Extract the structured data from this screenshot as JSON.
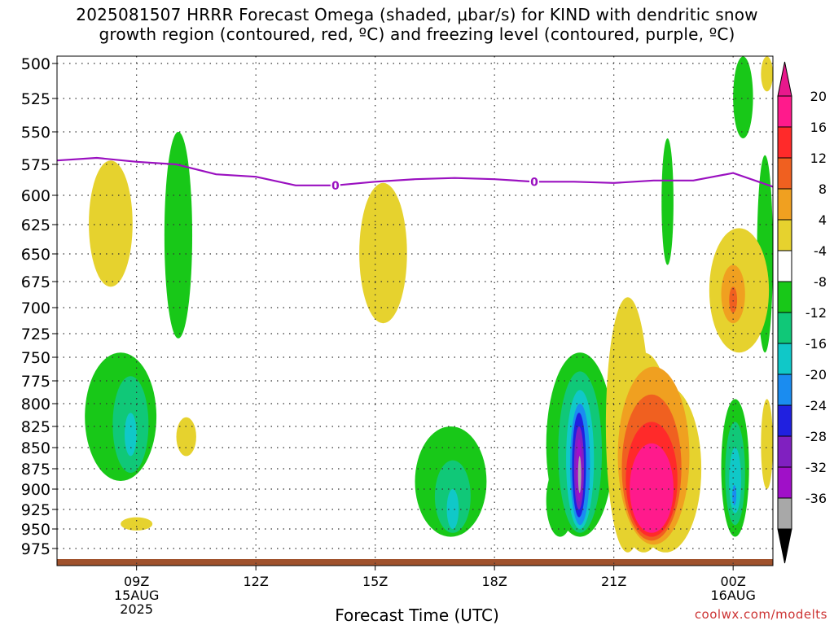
{
  "title_lines": [
    "2025081507 HRRR Forecast Omega (shaded, μbar/s) for KIND with dendritic snow",
    "growth region (contoured, red, ºC) and freezing level (contoured, purple, ºC)"
  ],
  "credit": "coolwx.com/modelts",
  "chart_data": {
    "type": "filled-contour time-height cross-section",
    "title": "2025081507 HRRR Forecast Omega (shaded, μbar/s) for KIND with dendritic snow growth region (contoured, red, ºC) and freezing level (contoured, purple, ºC)",
    "xlabel": "Forecast Time (UTC)",
    "ylabel": "",
    "x_range_hours": [
      7,
      25
    ],
    "y_range_mb": [
      975,
      500
    ],
    "y_axis_reversed": true,
    "grid": true,
    "y_ticks": [
      500,
      525,
      550,
      575,
      600,
      625,
      650,
      675,
      700,
      725,
      750,
      775,
      800,
      825,
      850,
      875,
      900,
      925,
      950,
      975
    ],
    "x_ticks": [
      {
        "hour": 9,
        "label": "09Z",
        "date": "15AUG",
        "year": "2025"
      },
      {
        "hour": 12,
        "label": "12Z",
        "date": "",
        "year": ""
      },
      {
        "hour": 15,
        "label": "15Z",
        "date": "",
        "year": ""
      },
      {
        "hour": 18,
        "label": "18Z",
        "date": "",
        "year": ""
      },
      {
        "hour": 21,
        "label": "21Z",
        "date": "",
        "year": ""
      },
      {
        "hour": 24,
        "label": "00Z",
        "date": "16AUG",
        "year": ""
      }
    ],
    "colorbar": {
      "labels": [
        "20",
        "16",
        "12",
        "8",
        "4",
        "-4",
        "-8",
        "-12",
        "-16",
        "-20",
        "-24",
        "-28",
        "-32",
        "-36"
      ],
      "bands": [
        {
          "color": "#ff1a8c"
        },
        {
          "color": "#ff2a2a"
        },
        {
          "color": "#f06020"
        },
        {
          "color": "#f0a020"
        },
        {
          "color": "#e6d22e"
        },
        {
          "color": "#ffffff"
        },
        {
          "color": "#18c818"
        },
        {
          "color": "#10c878"
        },
        {
          "color": "#10c8c8"
        },
        {
          "color": "#1a8cf0"
        },
        {
          "color": "#2020e0"
        },
        {
          "color": "#8020c0"
        },
        {
          "color": "#a010c8"
        },
        {
          "color": "#a8a8a8"
        }
      ],
      "top_cap_color": "#e8188c",
      "bottom_cap_color": "#000000"
    },
    "freezing_level": {
      "color": "#9a10c0",
      "label": "0",
      "label_points": [
        {
          "hour": 14.0,
          "mb": 592
        },
        {
          "hour": 19.0,
          "mb": 589
        }
      ],
      "points": [
        {
          "hour": 7.0,
          "mb": 572
        },
        {
          "hour": 8.0,
          "mb": 570
        },
        {
          "hour": 9.0,
          "mb": 573
        },
        {
          "hour": 10.0,
          "mb": 575
        },
        {
          "hour": 11.0,
          "mb": 583
        },
        {
          "hour": 12.0,
          "mb": 585
        },
        {
          "hour": 13.0,
          "mb": 592
        },
        {
          "hour": 14.0,
          "mb": 592
        },
        {
          "hour": 15.0,
          "mb": 589
        },
        {
          "hour": 16.0,
          "mb": 587
        },
        {
          "hour": 17.0,
          "mb": 586
        },
        {
          "hour": 18.0,
          "mb": 587
        },
        {
          "hour": 19.0,
          "mb": 589
        },
        {
          "hour": 20.0,
          "mb": 589
        },
        {
          "hour": 21.0,
          "mb": 590
        },
        {
          "hour": 22.0,
          "mb": 588
        },
        {
          "hour": 23.0,
          "mb": 588
        },
        {
          "hour": 24.0,
          "mb": 582
        },
        {
          "hour": 25.0,
          "mb": 593
        }
      ]
    },
    "surface_color": "#a0522d",
    "omega_regions": [
      {
        "color": "#e6d22e",
        "x": [
          7.8,
          8.9
        ],
        "mb": [
          572,
          680
        ]
      },
      {
        "color": "#18c818",
        "x": [
          9.7,
          10.4
        ],
        "mb": [
          550,
          730
        ]
      },
      {
        "color": "#e6d22e",
        "x": [
          14.6,
          15.8
        ],
        "mb": [
          590,
          715
        ]
      },
      {
        "color": "#18c818",
        "x": [
          22.2,
          22.5
        ],
        "mb": [
          555,
          660
        ]
      },
      {
        "color": "#18c818",
        "x": [
          24.0,
          24.5
        ],
        "mb": [
          495,
          555
        ]
      },
      {
        "color": "#e6d22e",
        "x": [
          24.7,
          25.0
        ],
        "mb": [
          495,
          520
        ]
      },
      {
        "color": "#18c818",
        "x": [
          24.6,
          25.0
        ],
        "mb": [
          568,
          745
        ]
      },
      {
        "color": "#e6d22e",
        "x": [
          23.4,
          24.9
        ],
        "mb": [
          628,
          745
        ]
      },
      {
        "color": "#f0a020",
        "x": [
          23.7,
          24.3
        ],
        "mb": [
          660,
          715
        ]
      },
      {
        "color": "#f06020",
        "x": [
          23.9,
          24.1
        ],
        "mb": [
          680,
          705
        ]
      },
      {
        "color": "#18c818",
        "x": [
          7.7,
          9.5
        ],
        "mb": [
          745,
          890
        ]
      },
      {
        "color": "#10c878",
        "x": [
          8.4,
          9.3
        ],
        "mb": [
          770,
          880
        ]
      },
      {
        "color": "#10c8c8",
        "x": [
          8.7,
          9.0
        ],
        "mb": [
          810,
          860
        ]
      },
      {
        "color": "#e6d22e",
        "x": [
          10.0,
          10.5
        ],
        "mb": [
          815,
          860
        ]
      },
      {
        "color": "#e6d22e",
        "x": [
          8.6,
          9.4
        ],
        "mb": [
          935,
          952
        ]
      },
      {
        "color": "#18c818",
        "x": [
          16.0,
          17.8
        ],
        "mb": [
          825,
          960
        ]
      },
      {
        "color": "#10c878",
        "x": [
          16.5,
          17.4
        ],
        "mb": [
          865,
          955
        ]
      },
      {
        "color": "#10c8c8",
        "x": [
          16.8,
          17.1
        ],
        "mb": [
          900,
          950
        ]
      },
      {
        "color": "#18c818",
        "x": [
          19.3,
          21.0
        ],
        "mb": [
          745,
          960
        ]
      },
      {
        "color": "#18c818",
        "x": [
          19.3,
          20.0
        ],
        "mb": [
          870,
          960
        ]
      },
      {
        "color": "#10c878",
        "x": [
          19.6,
          20.7
        ],
        "mb": [
          765,
          955
        ]
      },
      {
        "color": "#10c8c8",
        "x": [
          19.8,
          20.5
        ],
        "mb": [
          785,
          950
        ]
      },
      {
        "color": "#1a8cf0",
        "x": [
          19.9,
          20.4
        ],
        "mb": [
          800,
          945
        ]
      },
      {
        "color": "#2020e0",
        "x": [
          19.95,
          20.3
        ],
        "mb": [
          810,
          935
        ]
      },
      {
        "color": "#8020c0",
        "x": [
          20.0,
          20.25
        ],
        "mb": [
          825,
          925
        ]
      },
      {
        "color": "#a010c8",
        "x": [
          20.05,
          20.2
        ],
        "mb": [
          840,
          915
        ]
      },
      {
        "color": "#a8a8a8",
        "x": [
          20.1,
          20.18
        ],
        "mb": [
          860,
          905
        ]
      },
      {
        "color": "#e6d22e",
        "x": [
          20.8,
          21.9
        ],
        "mb": [
          690,
          980
        ]
      },
      {
        "color": "#e6d22e",
        "x": [
          21.0,
          22.5
        ],
        "mb": [
          745,
          980
        ]
      },
      {
        "color": "#e6d22e",
        "x": [
          21.4,
          23.2
        ],
        "mb": [
          780,
          980
        ]
      },
      {
        "color": "#f0a020",
        "x": [
          21.1,
          22.9
        ],
        "mb": [
          760,
          970
        ]
      },
      {
        "color": "#f06020",
        "x": [
          21.2,
          22.7
        ],
        "mb": [
          790,
          965
        ]
      },
      {
        "color": "#ff2a2a",
        "x": [
          21.3,
          22.6
        ],
        "mb": [
          820,
          960
        ]
      },
      {
        "color": "#ff1a8c",
        "x": [
          21.4,
          22.5
        ],
        "mb": [
          845,
          955
        ]
      },
      {
        "color": "#18c818",
        "x": [
          23.7,
          24.4
        ],
        "mb": [
          795,
          960
        ]
      },
      {
        "color": "#10c878",
        "x": [
          23.8,
          24.3
        ],
        "mb": [
          820,
          945
        ]
      },
      {
        "color": "#10c8c8",
        "x": [
          23.9,
          24.2
        ],
        "mb": [
          850,
          930
        ]
      },
      {
        "color": "#1a8cf0",
        "x": [
          23.98,
          24.08
        ],
        "mb": [
          895,
          920
        ]
      },
      {
        "color": "#e6d22e",
        "x": [
          24.7,
          25.0
        ],
        "mb": [
          795,
          900
        ]
      }
    ]
  }
}
